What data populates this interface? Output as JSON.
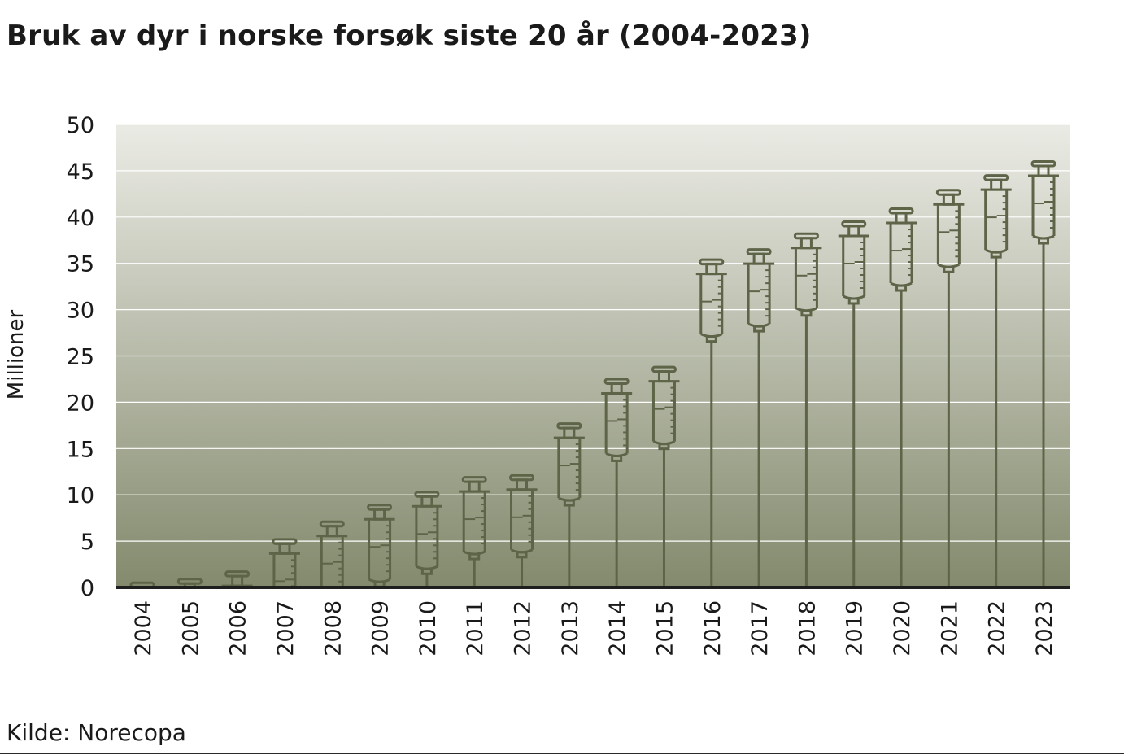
{
  "title": "Bruk av dyr i norske forsøk siste 20 år (2004-2023)",
  "source": "Kilde: Norecopa",
  "colors": {
    "syringe": "#5e6448",
    "grid": "#ffffff",
    "baseline": "#1f1f1f",
    "bg_top": "#ebebe5",
    "bg_bottom": "#838a6d"
  },
  "chart_data": {
    "type": "bar",
    "title": "Bruk av dyr i norske forsøk siste 20 år (2004-2023)",
    "xlabel": "",
    "ylabel": "Millioner",
    "ylim": [
      0,
      50
    ],
    "yticks": [
      0,
      5,
      10,
      15,
      20,
      25,
      30,
      35,
      40,
      45,
      50
    ],
    "grid": true,
    "categories": [
      "2004",
      "2005",
      "2006",
      "2007",
      "2008",
      "2009",
      "2010",
      "2011",
      "2012",
      "2013",
      "2014",
      "2015",
      "2016",
      "2017",
      "2018",
      "2019",
      "2020",
      "2021",
      "2022",
      "2023"
    ],
    "values": [
      0.5,
      0.9,
      1.7,
      5.2,
      7.1,
      8.9,
      10.3,
      11.9,
      12.1,
      17.7,
      22.5,
      23.8,
      35.4,
      36.5,
      38.2,
      39.5,
      40.9,
      42.9,
      44.5,
      46.0
    ],
    "mark": "syringe-icon"
  }
}
